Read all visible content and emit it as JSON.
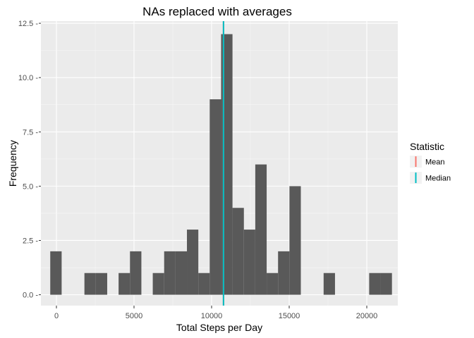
{
  "chart_data": {
    "type": "bar",
    "title": "NAs replaced with averages",
    "xlabel": "Total Steps per Day",
    "ylabel": "Frequency",
    "xlim": [
      -1000,
      22000
    ],
    "ylim": [
      -0.5,
      12.6
    ],
    "x_ticks": [
      0,
      5000,
      10000,
      15000,
      20000
    ],
    "x_tick_labels": [
      "0",
      "5000",
      "10000",
      "15000",
      "20000"
    ],
    "y_ticks": [
      0,
      2.5,
      5,
      7.5,
      10,
      12.5
    ],
    "y_tick_labels": [
      "0.0 -",
      "2.5 -",
      "5.0 -",
      "7.5 -",
      "10.0 -",
      "12.5 -"
    ],
    "bin_width": 734,
    "bins": [
      {
        "center": -31,
        "count": 2
      },
      {
        "center": 2171,
        "count": 1
      },
      {
        "center": 2905,
        "count": 1
      },
      {
        "center": 4373,
        "count": 1
      },
      {
        "center": 5107,
        "count": 2
      },
      {
        "center": 6575,
        "count": 1
      },
      {
        "center": 7309,
        "count": 2
      },
      {
        "center": 8043,
        "count": 2
      },
      {
        "center": 8777,
        "count": 3
      },
      {
        "center": 9511,
        "count": 1
      },
      {
        "center": 10245,
        "count": 9
      },
      {
        "center": 10979,
        "count": 12
      },
      {
        "center": 11713,
        "count": 4
      },
      {
        "center": 12447,
        "count": 3
      },
      {
        "center": 13181,
        "count": 6
      },
      {
        "center": 13915,
        "count": 1
      },
      {
        "center": 14649,
        "count": 2
      },
      {
        "center": 15383,
        "count": 5
      },
      {
        "center": 17585,
        "count": 1
      },
      {
        "center": 20521,
        "count": 1
      },
      {
        "center": 21255,
        "count": 1
      }
    ],
    "vlines": [
      {
        "name": "Mean",
        "value": 10766,
        "color": "#F8766D"
      },
      {
        "name": "Median",
        "value": 10766,
        "color": "#00BFC4"
      }
    ],
    "legend": {
      "title": "Statistic",
      "position": "right",
      "entries": [
        {
          "label": "Mean",
          "color": "#F8766D"
        },
        {
          "label": "Median",
          "color": "#00BFC4"
        }
      ]
    },
    "grid": true,
    "bar_color": "#595959",
    "panel_color": "#EBEBEB"
  }
}
